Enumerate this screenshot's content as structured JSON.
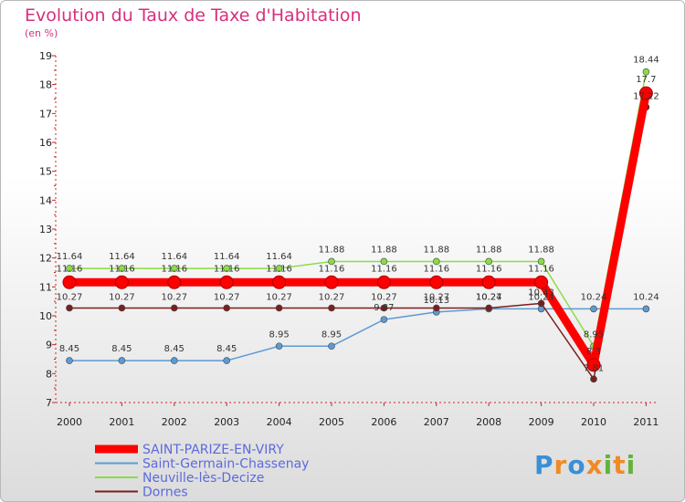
{
  "chart_data": {
    "type": "line",
    "title": "Evolution du Taux de Taxe d'Habitation",
    "unit_label": "(en %)",
    "x": [
      "2000",
      "2001",
      "2002",
      "2003",
      "2004",
      "2005",
      "2006",
      "2007",
      "2008",
      "2009",
      "2010",
      "2011"
    ],
    "ylim": [
      7,
      19
    ],
    "yticks": [
      7,
      8,
      9,
      10,
      11,
      12,
      13,
      14,
      15,
      16,
      17,
      18,
      19
    ],
    "series": [
      {
        "name": "SAINT-PARIZE-EN-VIRY",
        "color": "#ff0000",
        "values": [
          11.16,
          11.16,
          11.16,
          11.16,
          11.16,
          11.16,
          11.16,
          11.16,
          11.16,
          11.16,
          8.3,
          17.7
        ],
        "labels": [
          "11.16",
          "11.16",
          "11.16",
          "11.16",
          "11.16",
          "11.16",
          "11.16",
          "11.16",
          "11.16",
          "11.16",
          "8.3",
          "17.7"
        ]
      },
      {
        "name": "Saint-Germain-Chassenay",
        "color": "#5b9bd5",
        "values": [
          8.45,
          8.45,
          8.45,
          8.45,
          8.95,
          8.95,
          9.87,
          10.13,
          10.24,
          10.24,
          10.24,
          10.24
        ],
        "labels": [
          "8.45",
          "8.45",
          "8.45",
          "8.45",
          "8.95",
          "8.95",
          "9.87",
          "10.13",
          "10.24",
          "10.24",
          "10.24",
          "10.24"
        ]
      },
      {
        "name": "Neuville-lès-Decize",
        "color": "#88dd44",
        "values": [
          11.64,
          11.64,
          11.64,
          11.64,
          11.64,
          11.88,
          11.88,
          11.88,
          11.88,
          11.88,
          8.95,
          18.44
        ],
        "labels": [
          "11.64",
          "11.64",
          "11.64",
          "11.64",
          "11.64",
          "11.88",
          "11.88",
          "11.88",
          "11.88",
          "11.88",
          "8.95",
          "18.44"
        ]
      },
      {
        "name": "Dornes",
        "color": "#7a1f1f",
        "values": [
          10.27,
          10.27,
          10.27,
          10.27,
          10.27,
          10.27,
          10.27,
          10.27,
          10.27,
          10.43,
          7.81,
          17.22
        ],
        "labels": [
          "10.27",
          "10.27",
          "10.27",
          "10.27",
          "10.27",
          "10.27",
          "10.27",
          "10.27",
          "10.27",
          "10.43",
          "7.81",
          "17.22"
        ]
      }
    ]
  },
  "logo": {
    "letters": [
      "P",
      "r",
      "o",
      "x",
      "i",
      "t",
      "i"
    ],
    "colors": [
      "#3a8fd6",
      "#f08a24",
      "#3a8fd6",
      "#f08a24",
      "#63b33a",
      "#f08a24",
      "#63b33a"
    ]
  }
}
